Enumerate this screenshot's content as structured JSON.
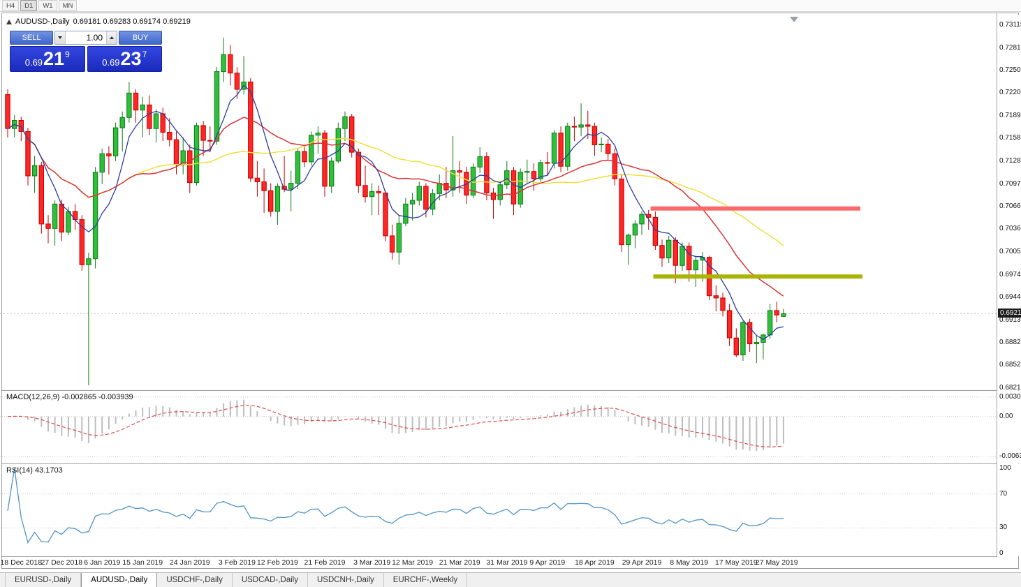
{
  "toolbar": {
    "timeframes": [
      "H4",
      "D1",
      "W1",
      "MN"
    ],
    "active": "D1"
  },
  "chart": {
    "symbol_title": "AUDUSD-,Daily",
    "ohlc_text": "0.69181 0.69283 0.69174 0.69219"
  },
  "trade_panel": {
    "sell_label": "SELL",
    "buy_label": "BUY",
    "volume": "1.00",
    "sell_price_small": "0.69",
    "sell_price_big": "21",
    "sell_price_sup": "9",
    "buy_price_small": "0.69",
    "buy_price_big": "23",
    "buy_price_sup": "7"
  },
  "indicators": {
    "macd_title": "MACD(12,26,9) -0.002865 -0.003939",
    "rsi_title": "RSI(14) 43.1703"
  },
  "axes": {
    "price_tag": "0.69219",
    "price_labels": [
      "0.73115",
      "0.72810",
      "0.72505",
      "0.72200",
      "0.71895",
      "0.71585",
      "0.71280",
      "0.70970",
      "0.70665",
      "0.70360",
      "0.70050",
      "0.69745",
      "0.69440",
      "0.69130",
      "0.68825",
      "0.68520",
      "0.68210"
    ],
    "macd_labels": [
      "0.00303",
      "0.00",
      "-0.00631"
    ],
    "rsi_labels": [
      "100",
      "70",
      "30",
      "0"
    ],
    "date_labels": [
      {
        "text": "18 Dec 2018",
        "bar": 2
      },
      {
        "text": "27 Dec 2018",
        "bar": 8
      },
      {
        "text": "6 Jan 2019",
        "bar": 14
      },
      {
        "text": "15 Jan 2019",
        "bar": 20
      },
      {
        "text": "24 Jan 2019",
        "bar": 27
      },
      {
        "text": "3 Feb 2019",
        "bar": 34
      },
      {
        "text": "12 Feb 2019",
        "bar": 40
      },
      {
        "text": "21 Feb 2019",
        "bar": 47
      },
      {
        "text": "3 Mar 2019",
        "bar": 54
      },
      {
        "text": "12 Mar 2019",
        "bar": 60
      },
      {
        "text": "21 Mar 2019",
        "bar": 67
      },
      {
        "text": "31 Mar 2019",
        "bar": 74
      },
      {
        "text": "9 Apr 2019",
        "bar": 80
      },
      {
        "text": "18 Apr 2019",
        "bar": 87
      },
      {
        "text": "29 Apr 2019",
        "bar": 94
      },
      {
        "text": "8 May 2019",
        "bar": 101
      },
      {
        "text": "17 May 2019",
        "bar": 108
      },
      {
        "text": "27 May 2019",
        "bar": 114
      }
    ]
  },
  "tabs": [
    {
      "label": "EURUSD-,Daily",
      "active": false
    },
    {
      "label": "AUDUSD-,Daily",
      "active": true
    },
    {
      "label": "USDCHF-,Daily",
      "active": false
    },
    {
      "label": "USDCAD-,Daily",
      "active": false
    },
    {
      "label": "USDCNH-,Daily",
      "active": false
    },
    {
      "label": "EURCHF-,Weekly",
      "active": false
    }
  ],
  "chart_data": {
    "type": "candlestick",
    "symbol": "AUDUSD",
    "timeframe": "Daily",
    "current_price": 0.69219,
    "view": {
      "top_price": 0.7325,
      "bottom_price": 0.68184
    },
    "colors": {
      "bull": "#30bf3a",
      "bull_border": "#0d7a18",
      "bear": "#ff2626",
      "bear_border": "#c40000",
      "price_line": "#b8b8b8"
    },
    "moving_averages": [
      {
        "name": "fast",
        "method": "sma",
        "period": 6,
        "color": "#2b3f9e"
      },
      {
        "name": "medium",
        "method": "sma",
        "period": 20,
        "color": "#d83434"
      },
      {
        "name": "slow",
        "method": "sma",
        "period": 34,
        "color": "#efe03c"
      }
    ],
    "hlines": [
      {
        "name": "resistance-line",
        "price": 0.7064,
        "color": "#fb6a6a",
        "thickness": 6,
        "x1_bar": 95.3,
        "x2_bar": 126.4
      },
      {
        "name": "support-line",
        "price": 0.6972,
        "color": "#a9b407",
        "thickness": 6,
        "x1_bar": 95.7,
        "x2_bar": 126.7
      }
    ],
    "macd": {
      "fast": 12,
      "slow": 26,
      "signal": 9,
      "value": -0.002865,
      "signal_value": -0.003939,
      "hist_color": "#bdbdbd",
      "signal_color": "#e04848",
      "range_top": 0.004,
      "range_bottom": -0.00735
    },
    "rsi": {
      "period": 14,
      "value": 43.1703,
      "color": "#4f93c6",
      "levels": [
        70,
        30
      ],
      "range": [
        0,
        100
      ]
    },
    "candles": [
      [
        "2018-12-14",
        0.7218,
        0.7225,
        0.716,
        0.7172
      ],
      [
        "2018-12-17",
        0.7172,
        0.719,
        0.716,
        0.7183
      ],
      [
        "2018-12-18",
        0.7183,
        0.7188,
        0.7155,
        0.7168
      ],
      [
        "2018-12-19",
        0.7168,
        0.7173,
        0.7095,
        0.7108
      ],
      [
        "2018-12-20",
        0.7108,
        0.7135,
        0.7085,
        0.7122
      ],
      [
        "2018-12-21",
        0.7122,
        0.7127,
        0.703,
        0.7043
      ],
      [
        "2018-12-24",
        0.7043,
        0.7055,
        0.7017,
        0.7037
      ],
      [
        "2018-12-26",
        0.7037,
        0.7075,
        0.7014,
        0.707
      ],
      [
        "2018-12-27",
        0.707,
        0.7076,
        0.702,
        0.7032
      ],
      [
        "2018-12-28",
        0.7032,
        0.7066,
        0.7028,
        0.706
      ],
      [
        "2018-12-31",
        0.706,
        0.707,
        0.7035,
        0.7049
      ],
      [
        "2019-01-02",
        0.7049,
        0.7055,
        0.698,
        0.6988
      ],
      [
        "2019-01-03",
        0.6988,
        0.7004,
        0.6825,
        0.6996
      ],
      [
        "2019-01-04",
        0.6996,
        0.712,
        0.6983,
        0.7113
      ],
      [
        "2019-01-07",
        0.7113,
        0.7145,
        0.7097,
        0.7138
      ],
      [
        "2019-01-08",
        0.7138,
        0.7148,
        0.711,
        0.7135
      ],
      [
        "2019-01-09",
        0.7135,
        0.718,
        0.7128,
        0.7173
      ],
      [
        "2019-01-10",
        0.7173,
        0.7195,
        0.7141,
        0.7187
      ],
      [
        "2019-01-11",
        0.7187,
        0.7235,
        0.718,
        0.722
      ],
      [
        "2019-01-14",
        0.722,
        0.7225,
        0.718,
        0.7197
      ],
      [
        "2019-01-15",
        0.7197,
        0.7215,
        0.716,
        0.7204
      ],
      [
        "2019-01-16",
        0.7204,
        0.7217,
        0.7163,
        0.7172
      ],
      [
        "2019-01-17",
        0.7172,
        0.7198,
        0.7153,
        0.7192
      ],
      [
        "2019-01-18",
        0.7192,
        0.72,
        0.7155,
        0.7167
      ],
      [
        "2019-01-21",
        0.7167,
        0.7186,
        0.7148,
        0.7157
      ],
      [
        "2019-01-22",
        0.7157,
        0.7168,
        0.711,
        0.7123
      ],
      [
        "2019-01-23",
        0.7123,
        0.716,
        0.711,
        0.7142
      ],
      [
        "2019-01-24",
        0.7142,
        0.715,
        0.7085,
        0.7099
      ],
      [
        "2019-01-25",
        0.7099,
        0.718,
        0.7095,
        0.7176
      ],
      [
        "2019-01-28",
        0.7176,
        0.7182,
        0.7135,
        0.7156
      ],
      [
        "2019-01-29",
        0.7156,
        0.7175,
        0.714,
        0.7155
      ],
      [
        "2019-01-30",
        0.7155,
        0.7255,
        0.715,
        0.7249
      ],
      [
        "2019-01-31",
        0.7249,
        0.7295,
        0.7235,
        0.7272
      ],
      [
        "2019-02-01",
        0.7272,
        0.7285,
        0.723,
        0.7247
      ],
      [
        "2019-02-04",
        0.7247,
        0.7255,
        0.7212,
        0.7225
      ],
      [
        "2019-02-05",
        0.7225,
        0.727,
        0.7218,
        0.7235
      ],
      [
        "2019-02-06",
        0.7235,
        0.724,
        0.71,
        0.7105
      ],
      [
        "2019-02-07",
        0.7105,
        0.7128,
        0.708,
        0.71
      ],
      [
        "2019-02-08",
        0.71,
        0.7118,
        0.7058,
        0.7088
      ],
      [
        "2019-02-11",
        0.7088,
        0.7098,
        0.7053,
        0.706
      ],
      [
        "2019-02-12",
        0.706,
        0.7098,
        0.7042,
        0.7094
      ],
      [
        "2019-02-13",
        0.7094,
        0.7135,
        0.7086,
        0.709
      ],
      [
        "2019-02-14",
        0.709,
        0.7115,
        0.706,
        0.7098
      ],
      [
        "2019-02-15",
        0.7098,
        0.7145,
        0.709,
        0.7141
      ],
      [
        "2019-02-18",
        0.7141,
        0.715,
        0.712,
        0.7127
      ],
      [
        "2019-02-19",
        0.7127,
        0.7168,
        0.7122,
        0.7163
      ],
      [
        "2019-02-20",
        0.7163,
        0.7175,
        0.7138,
        0.7166
      ],
      [
        "2019-02-21",
        0.7166,
        0.717,
        0.708,
        0.7094
      ],
      [
        "2019-02-22",
        0.7094,
        0.7133,
        0.7085,
        0.7128
      ],
      [
        "2019-02-25",
        0.7128,
        0.718,
        0.7125,
        0.7172
      ],
      [
        "2019-02-26",
        0.7172,
        0.7195,
        0.7155,
        0.7188
      ],
      [
        "2019-02-27",
        0.7188,
        0.7192,
        0.7133,
        0.714
      ],
      [
        "2019-02-28",
        0.714,
        0.7145,
        0.7085,
        0.7095
      ],
      [
        "2019-03-01",
        0.7095,
        0.7122,
        0.7072,
        0.708
      ],
      [
        "2019-03-04",
        0.708,
        0.7098,
        0.7055,
        0.7087
      ],
      [
        "2019-03-05",
        0.7087,
        0.7095,
        0.7055,
        0.7085
      ],
      [
        "2019-03-06",
        0.7085,
        0.7088,
        0.702,
        0.7027
      ],
      [
        "2019-03-07",
        0.7027,
        0.7042,
        0.6995,
        0.7005
      ],
      [
        "2019-03-08",
        0.7005,
        0.7055,
        0.6988,
        0.7044
      ],
      [
        "2019-03-11",
        0.7044,
        0.7078,
        0.704,
        0.707
      ],
      [
        "2019-03-12",
        0.707,
        0.7085,
        0.7048,
        0.7075
      ],
      [
        "2019-03-13",
        0.7075,
        0.71,
        0.7068,
        0.7094
      ],
      [
        "2019-03-14",
        0.7094,
        0.7098,
        0.7052,
        0.7063
      ],
      [
        "2019-03-15",
        0.7063,
        0.709,
        0.7055,
        0.7084
      ],
      [
        "2019-03-18",
        0.7084,
        0.711,
        0.7075,
        0.7098
      ],
      [
        "2019-03-19",
        0.7098,
        0.712,
        0.7078,
        0.7089
      ],
      [
        "2019-03-20",
        0.7089,
        0.7162,
        0.708,
        0.7115
      ],
      [
        "2019-03-21",
        0.7115,
        0.7128,
        0.7085,
        0.7113
      ],
      [
        "2019-03-22",
        0.7113,
        0.712,
        0.707,
        0.7082
      ],
      [
        "2019-03-25",
        0.7082,
        0.7125,
        0.7078,
        0.712
      ],
      [
        "2019-03-26",
        0.712,
        0.7147,
        0.7112,
        0.7134
      ],
      [
        "2019-03-27",
        0.7134,
        0.714,
        0.7075,
        0.7085
      ],
      [
        "2019-03-28",
        0.7085,
        0.7092,
        0.705,
        0.7076
      ],
      [
        "2019-03-29",
        0.7076,
        0.71,
        0.7068,
        0.7096
      ],
      [
        "2019-04-01",
        0.7096,
        0.7128,
        0.709,
        0.7115
      ],
      [
        "2019-04-02",
        0.7115,
        0.712,
        0.7055,
        0.707
      ],
      [
        "2019-04-03",
        0.707,
        0.7118,
        0.7065,
        0.7113
      ],
      [
        "2019-04-04",
        0.7113,
        0.713,
        0.7098,
        0.7114
      ],
      [
        "2019-04-05",
        0.7114,
        0.7125,
        0.7088,
        0.7104
      ],
      [
        "2019-04-08",
        0.7104,
        0.713,
        0.71,
        0.7126
      ],
      [
        "2019-04-09",
        0.7126,
        0.714,
        0.7108,
        0.7125
      ],
      [
        "2019-04-10",
        0.7125,
        0.717,
        0.7118,
        0.7166
      ],
      [
        "2019-04-11",
        0.7166,
        0.7175,
        0.7113,
        0.7121
      ],
      [
        "2019-04-12",
        0.7121,
        0.718,
        0.7115,
        0.7175
      ],
      [
        "2019-04-15",
        0.7175,
        0.7188,
        0.7155,
        0.7174
      ],
      [
        "2019-04-16",
        0.7174,
        0.7206,
        0.7162,
        0.7177
      ],
      [
        "2019-04-17",
        0.7177,
        0.7196,
        0.7158,
        0.7175
      ],
      [
        "2019-04-18",
        0.7175,
        0.718,
        0.7135,
        0.715
      ],
      [
        "2019-04-19",
        0.715,
        0.716,
        0.714,
        0.7151
      ],
      [
        "2019-04-22",
        0.7151,
        0.7158,
        0.713,
        0.7138
      ],
      [
        "2019-04-23",
        0.7138,
        0.7145,
        0.7095,
        0.7104
      ],
      [
        "2019-04-24",
        0.7104,
        0.711,
        0.7005,
        0.7015
      ],
      [
        "2019-04-25",
        0.7015,
        0.703,
        0.6988,
        0.7028
      ],
      [
        "2019-04-26",
        0.7028,
        0.7048,
        0.701,
        0.7043
      ],
      [
        "2019-04-29",
        0.7043,
        0.706,
        0.7028,
        0.7056
      ],
      [
        "2019-04-30",
        0.7056,
        0.7062,
        0.7035,
        0.7052
      ],
      [
        "2019-05-01",
        0.7052,
        0.706,
        0.7008,
        0.7014
      ],
      [
        "2019-05-02",
        0.7014,
        0.7022,
        0.6985,
        0.6997
      ],
      [
        "2019-05-03",
        0.6997,
        0.7027,
        0.699,
        0.7021
      ],
      [
        "2019-05-06",
        0.7021,
        0.7025,
        0.6963,
        0.6987
      ],
      [
        "2019-05-07",
        0.6987,
        0.7018,
        0.698,
        0.7013
      ],
      [
        "2019-05-08",
        0.7013,
        0.7018,
        0.6965,
        0.6981
      ],
      [
        "2019-05-09",
        0.6981,
        0.7,
        0.6958,
        0.6994
      ],
      [
        "2019-05-10",
        0.6994,
        0.7005,
        0.6965,
        0.6998
      ],
      [
        "2019-05-13",
        0.6998,
        0.7,
        0.694,
        0.6946
      ],
      [
        "2019-05-14",
        0.6946,
        0.696,
        0.6925,
        0.6943
      ],
      [
        "2019-05-15",
        0.6943,
        0.695,
        0.6918,
        0.6926
      ],
      [
        "2019-05-16",
        0.6926,
        0.6935,
        0.6878,
        0.6889
      ],
      [
        "2019-05-17",
        0.6889,
        0.6902,
        0.6863,
        0.6866
      ],
      [
        "2019-05-20",
        0.6866,
        0.6912,
        0.6858,
        0.691
      ],
      [
        "2019-05-21",
        0.691,
        0.6915,
        0.687,
        0.6881
      ],
      [
        "2019-05-22",
        0.6881,
        0.6892,
        0.6855,
        0.6883
      ],
      [
        "2019-05-23",
        0.6883,
        0.6895,
        0.686,
        0.6893
      ],
      [
        "2019-05-24",
        0.6893,
        0.6935,
        0.6888,
        0.6926
      ],
      [
        "2019-05-27",
        0.6926,
        0.6938,
        0.691,
        0.692
      ],
      [
        "2019-05-28",
        0.69181,
        0.69283,
        0.69174,
        0.69219
      ]
    ]
  }
}
